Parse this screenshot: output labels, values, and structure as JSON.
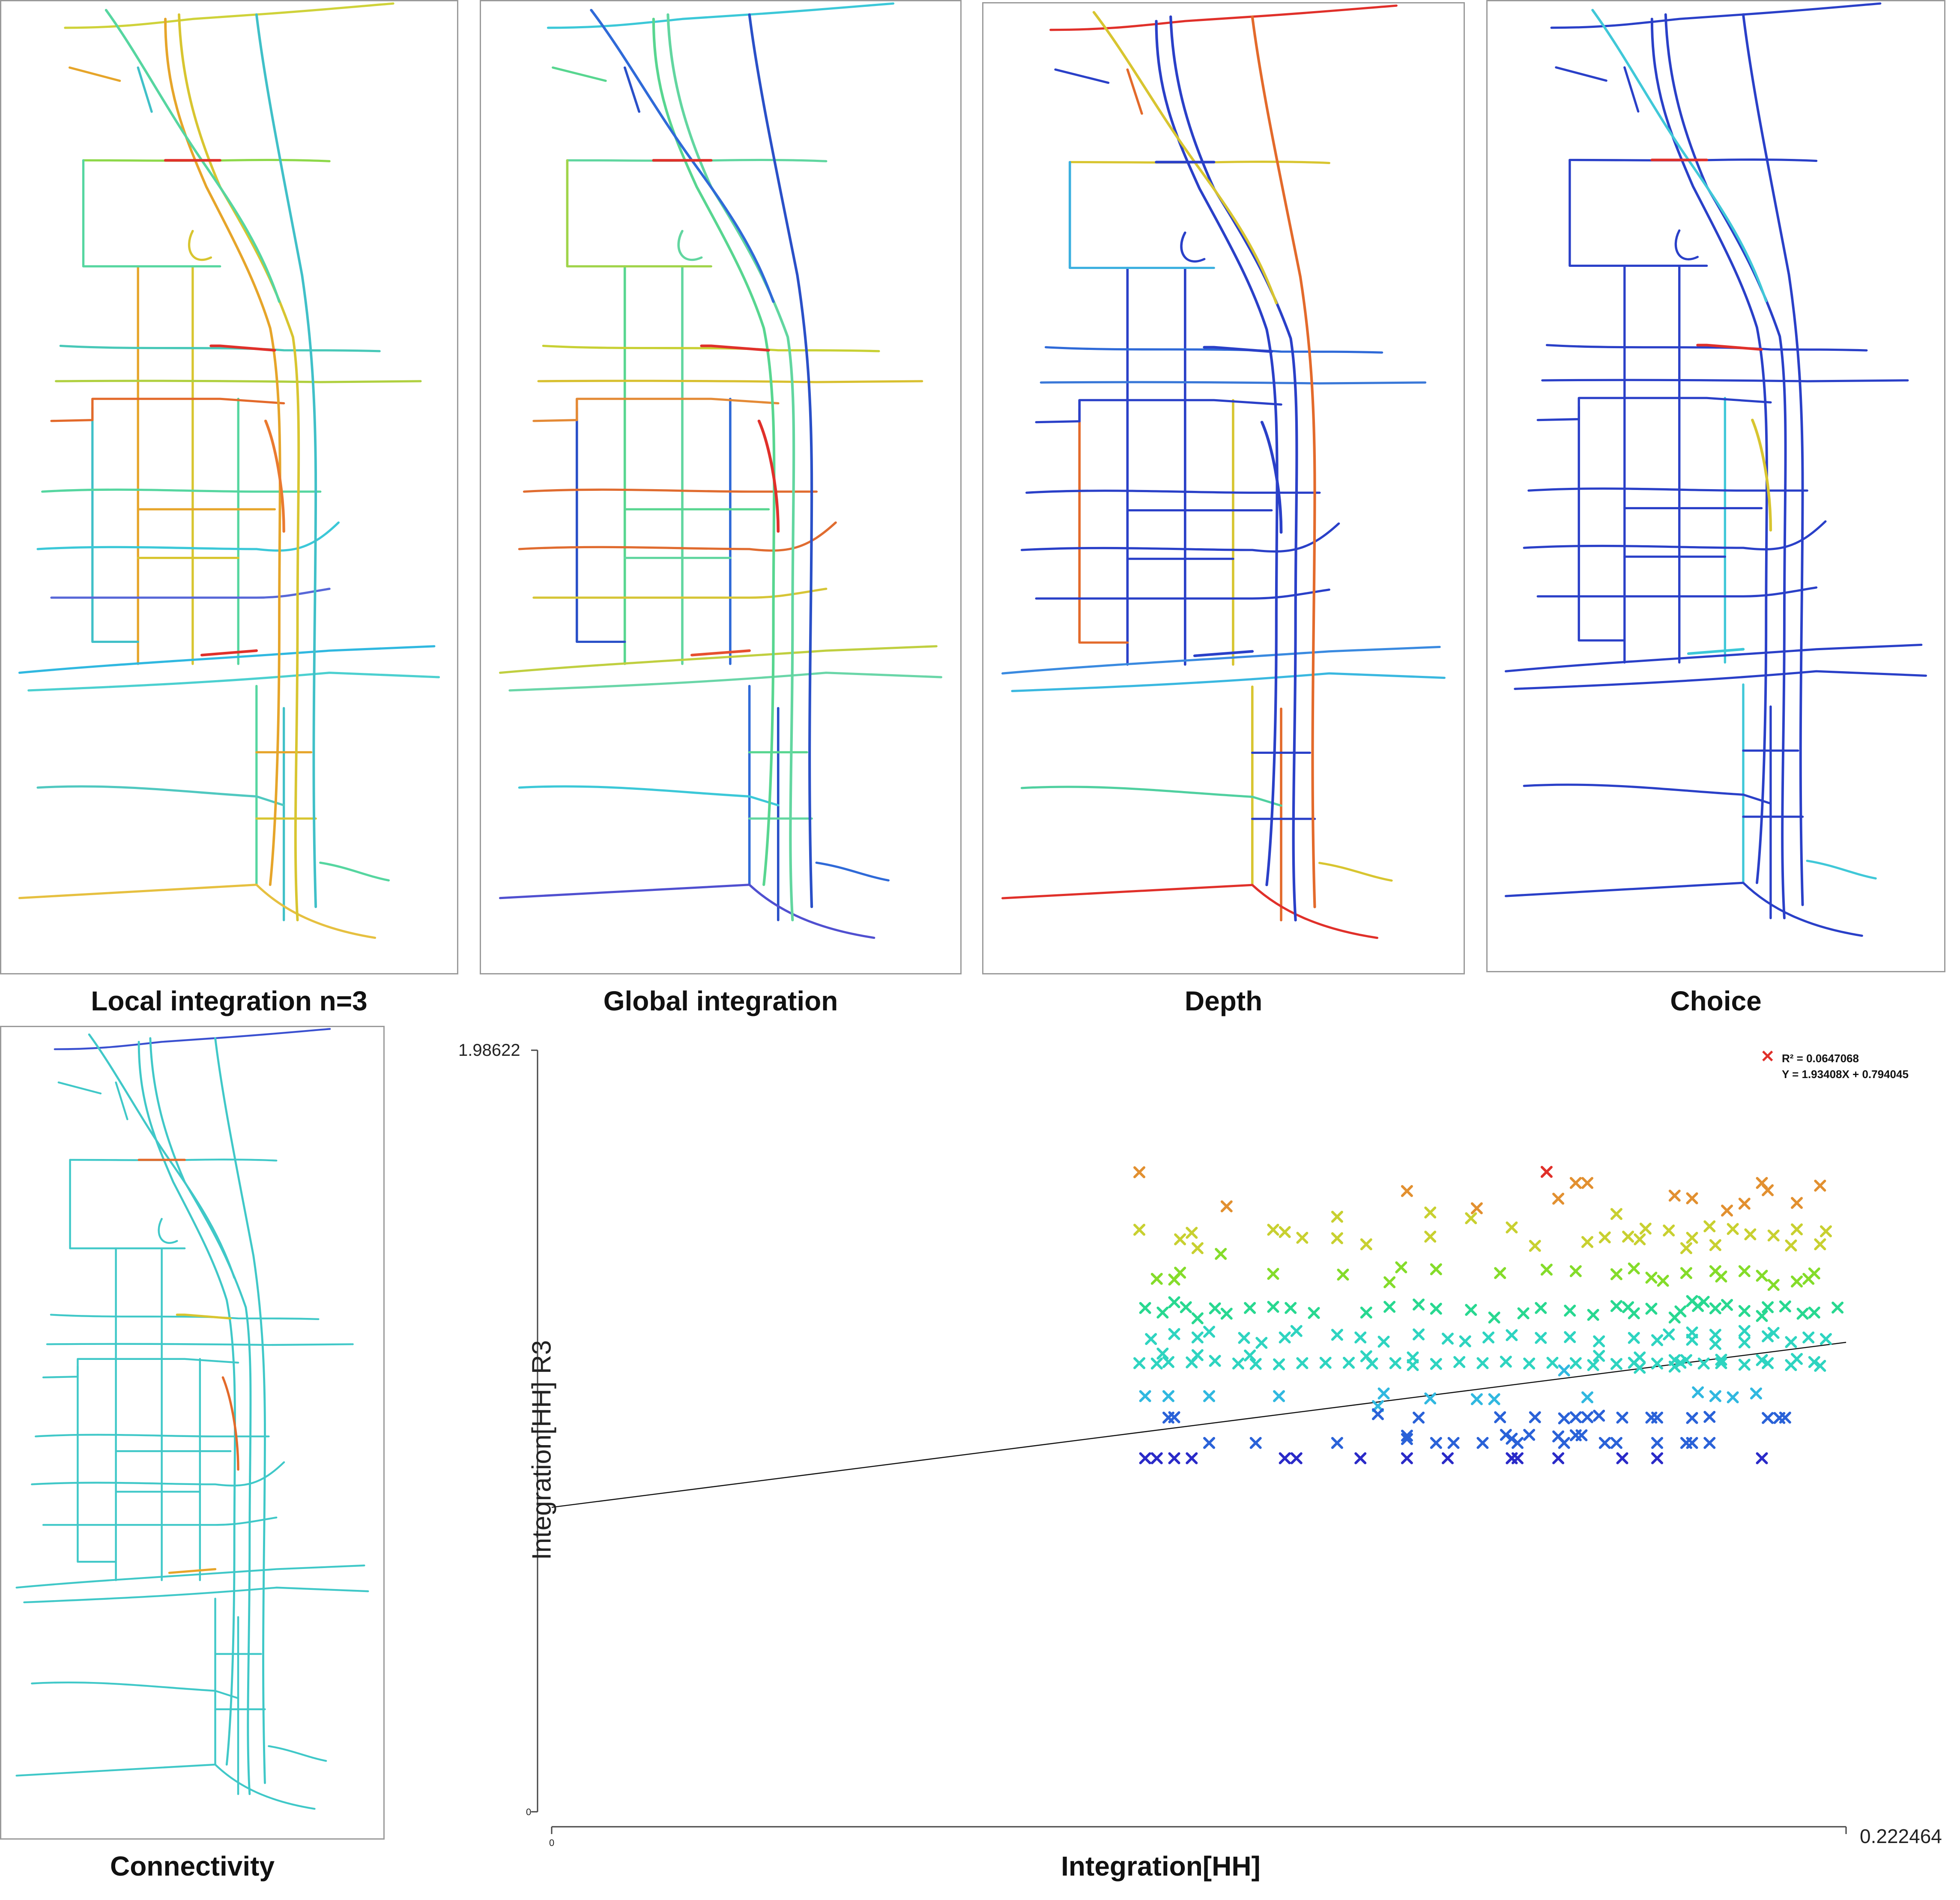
{
  "captions": {
    "local": "Local integration n=3",
    "global": "Global integration",
    "depth": "Depth",
    "choice": "Choice",
    "connectivity": "Connectivity"
  },
  "maps": {
    "local": {
      "axes": [
        "#e6a52a",
        "#d8c530",
        "#56d6a0",
        "#40c0c8"
      ],
      "cross": [
        "#cfd23a",
        "#8ed84a",
        "#56d6a0",
        "#48c8b8",
        "#b0d040",
        "#e36a2b",
        "#56d6a0",
        "#3cc8d8",
        "#5868d8",
        "#30b8e0",
        "#4cd0d0",
        "#50c8c0",
        "#e6c040"
      ],
      "hot_links": [
        "#e0302a",
        "#e0302a",
        "#ea7a30",
        "#e0302a"
      ]
    },
    "global": {
      "axes": [
        "#58d690",
        "#62d6a0",
        "#2f6ad8",
        "#2a50c8"
      ],
      "cross": [
        "#3cc8d8",
        "#60d6a0",
        "#a0d44a",
        "#c8d034",
        "#d8c030",
        "#e48a36",
        "#e06c30",
        "#e06c30",
        "#d6c536",
        "#c0cf40",
        "#6ad6a8",
        "#3cc8d8",
        "#5050d0"
      ],
      "hot_links": [
        "#e0302a",
        "#e0302a",
        "#e0302a",
        "#e65030"
      ]
    },
    "depth": {
      "axes": [
        "#2a40c8",
        "#2a40c8",
        "#d8c530",
        "#e36a2b"
      ],
      "cross": [
        "#e0302a",
        "#d8c530",
        "#3cb0e0",
        "#2f6ad8",
        "#3a78d8",
        "#2a40c8",
        "#2a40c8",
        "#2a40c8",
        "#2a40c8",
        "#3a8ae0",
        "#3ab8e0",
        "#50d0a0",
        "#e0302a"
      ],
      "hot_links": [
        "#2a40c8",
        "#2a40c8",
        "#2a40c8",
        "#2a40c8"
      ]
    },
    "choice": {
      "axes": [
        "#2a40c8",
        "#2a40c8",
        "#40c8d8",
        "#2a40c8"
      ],
      "cross": [
        "#2a40c8",
        "#2a40c8",
        "#2a40c8",
        "#2a40c8",
        "#2a40c8",
        "#2a40c8",
        "#2a40c8",
        "#2a40c8",
        "#2a40c8",
        "#2a40c8",
        "#2a40c8",
        "#2a40c8",
        "#2a40c8"
      ],
      "hot_links": [
        "#e0302a",
        "#e0302a",
        "#d8c530",
        "#3cc8d8"
      ]
    },
    "connectivity": {
      "axes": [
        "#40c8c8",
        "#40c8c8",
        "#40c8c8",
        "#40c8c8"
      ],
      "cross": [
        "#3a50d0",
        "#40c8c8",
        "#40c8c8",
        "#40c8c8",
        "#40c8c8",
        "#40c8c8",
        "#40c8c8",
        "#40c8c8",
        "#40c8c8",
        "#40c8c8",
        "#40c8c8",
        "#40c8c8",
        "#40c8c8"
      ],
      "hot_links": [
        "#e36a2b",
        "#d8c530",
        "#e36a2b",
        "#e6a52a"
      ]
    }
  },
  "chart_data": {
    "type": "scatter",
    "xlabel": "Integration[HH]",
    "ylabel": "Integration[HH] R3",
    "xlim": [
      0,
      0.222464
    ],
    "ylim": [
      0,
      1.98622
    ],
    "x_tick_labels": [
      "0",
      "0.222464"
    ],
    "y_tick_labels": [
      "0",
      "1.98622"
    ],
    "annotation": {
      "r2": "R² = 0.0647068",
      "equation": "Y = 1.93408X + 0.794045"
    },
    "regression": {
      "slope": 1.93408,
      "intercept": 0.794045
    },
    "marker": "x",
    "colormap": [
      "#2a2ac8",
      "#2a62d8",
      "#30b8e0",
      "#2ed4c0",
      "#28d890",
      "#84dc2a",
      "#c8d030",
      "#e29030",
      "#e0302a"
    ],
    "points": [
      [
        0.101,
        1.668
      ],
      [
        0.116,
        1.579
      ],
      [
        0.171,
        1.669
      ],
      [
        0.176,
        1.64
      ],
      [
        0.173,
        1.599
      ],
      [
        0.147,
        1.619
      ],
      [
        0.135,
        1.552
      ],
      [
        0.151,
        1.563
      ],
      [
        0.158,
        1.548
      ],
      [
        0.159,
        1.574
      ],
      [
        0.183,
        1.559
      ],
      [
        0.205,
        1.586
      ],
      [
        0.209,
        1.621
      ],
      [
        0.208,
        1.64
      ],
      [
        0.218,
        1.633
      ],
      [
        0.214,
        1.588
      ],
      [
        0.178,
        1.64
      ],
      [
        0.193,
        1.607
      ],
      [
        0.196,
        1.6
      ],
      [
        0.202,
        1.568
      ],
      [
        0.101,
        1.518
      ],
      [
        0.11,
        1.51
      ],
      [
        0.108,
        1.493
      ],
      [
        0.111,
        1.47
      ],
      [
        0.115,
        1.455
      ],
      [
        0.124,
        1.518
      ],
      [
        0.126,
        1.512
      ],
      [
        0.129,
        1.497
      ],
      [
        0.135,
        1.496
      ],
      [
        0.14,
        1.48
      ],
      [
        0.151,
        1.5
      ],
      [
        0.165,
        1.524
      ],
      [
        0.169,
        1.476
      ],
      [
        0.178,
        1.486
      ],
      [
        0.185,
        1.5
      ],
      [
        0.187,
        1.493
      ],
      [
        0.192,
        1.516
      ],
      [
        0.196,
        1.497
      ],
      [
        0.199,
        1.527
      ],
      [
        0.203,
        1.52
      ],
      [
        0.21,
        1.503
      ],
      [
        0.214,
        1.519
      ],
      [
        0.219,
        1.514
      ],
      [
        0.181,
        1.498
      ],
      [
        0.188,
        1.521
      ],
      [
        0.206,
        1.506
      ],
      [
        0.213,
        1.477
      ],
      [
        0.2,
        1.478
      ],
      [
        0.195,
        1.47
      ],
      [
        0.218,
        1.48
      ],
      [
        0.104,
        1.39
      ],
      [
        0.107,
        1.388
      ],
      [
        0.108,
        1.406
      ],
      [
        0.124,
        1.403
      ],
      [
        0.136,
        1.401
      ],
      [
        0.144,
        1.381
      ],
      [
        0.146,
        1.42
      ],
      [
        0.152,
        1.415
      ],
      [
        0.163,
        1.405
      ],
      [
        0.171,
        1.414
      ],
      [
        0.176,
        1.41
      ],
      [
        0.183,
        1.402
      ],
      [
        0.189,
        1.393
      ],
      [
        0.195,
        1.405
      ],
      [
        0.201,
        1.396
      ],
      [
        0.208,
        1.398
      ],
      [
        0.214,
        1.383
      ],
      [
        0.217,
        1.404
      ],
      [
        0.21,
        1.374
      ],
      [
        0.205,
        1.41
      ],
      [
        0.191,
        1.385
      ],
      [
        0.186,
        1.417
      ],
      [
        0.2,
        1.41
      ],
      [
        0.216,
        1.39
      ],
      [
        0.102,
        1.314
      ],
      [
        0.105,
        1.302
      ],
      [
        0.107,
        1.329
      ],
      [
        0.109,
        1.316
      ],
      [
        0.111,
        1.287
      ],
      [
        0.114,
        1.313
      ],
      [
        0.116,
        1.299
      ],
      [
        0.12,
        1.314
      ],
      [
        0.124,
        1.317
      ],
      [
        0.127,
        1.314
      ],
      [
        0.131,
        1.301
      ],
      [
        0.14,
        1.302
      ],
      [
        0.144,
        1.317
      ],
      [
        0.149,
        1.323
      ],
      [
        0.152,
        1.312
      ],
      [
        0.158,
        1.309
      ],
      [
        0.162,
        1.289
      ],
      [
        0.167,
        1.3
      ],
      [
        0.17,
        1.314
      ],
      [
        0.175,
        1.307
      ],
      [
        0.179,
        1.296
      ],
      [
        0.183,
        1.319
      ],
      [
        0.186,
        1.3
      ],
      [
        0.189,
        1.312
      ],
      [
        0.193,
        1.289
      ],
      [
        0.197,
        1.319
      ],
      [
        0.2,
        1.313
      ],
      [
        0.205,
        1.306
      ],
      [
        0.209,
        1.316
      ],
      [
        0.212,
        1.318
      ],
      [
        0.217,
        1.302
      ],
      [
        0.221,
        1.315
      ],
      [
        0.215,
        1.299
      ],
      [
        0.208,
        1.293
      ],
      [
        0.194,
        1.305
      ],
      [
        0.185,
        1.316
      ],
      [
        0.196,
        1.332
      ],
      [
        0.202,
        1.322
      ],
      [
        0.198,
        1.33
      ],
      [
        0.103,
        1.233
      ],
      [
        0.107,
        1.246
      ],
      [
        0.111,
        1.237
      ],
      [
        0.113,
        1.252
      ],
      [
        0.119,
        1.236
      ],
      [
        0.122,
        1.223
      ],
      [
        0.126,
        1.237
      ],
      [
        0.128,
        1.254
      ],
      [
        0.135,
        1.244
      ],
      [
        0.139,
        1.237
      ],
      [
        0.143,
        1.226
      ],
      [
        0.149,
        1.245
      ],
      [
        0.154,
        1.234
      ],
      [
        0.157,
        1.227
      ],
      [
        0.161,
        1.237
      ],
      [
        0.165,
        1.243
      ],
      [
        0.17,
        1.236
      ],
      [
        0.175,
        1.238
      ],
      [
        0.18,
        1.227
      ],
      [
        0.186,
        1.236
      ],
      [
        0.19,
        1.23
      ],
      [
        0.196,
        1.231
      ],
      [
        0.2,
        1.244
      ],
      [
        0.205,
        1.224
      ],
      [
        0.209,
        1.24
      ],
      [
        0.213,
        1.225
      ],
      [
        0.216,
        1.237
      ],
      [
        0.219,
        1.233
      ],
      [
        0.205,
        1.254
      ],
      [
        0.196,
        1.25
      ],
      [
        0.21,
        1.249
      ],
      [
        0.2,
        1.22
      ],
      [
        0.192,
        1.245
      ],
      [
        0.101,
        1.17
      ],
      [
        0.104,
        1.169
      ],
      [
        0.106,
        1.173
      ],
      [
        0.11,
        1.172
      ],
      [
        0.114,
        1.176
      ],
      [
        0.118,
        1.169
      ],
      [
        0.121,
        1.168
      ],
      [
        0.125,
        1.167
      ],
      [
        0.129,
        1.17
      ],
      [
        0.133,
        1.171
      ],
      [
        0.137,
        1.171
      ],
      [
        0.141,
        1.169
      ],
      [
        0.145,
        1.17
      ],
      [
        0.148,
        1.165
      ],
      [
        0.152,
        1.168
      ],
      [
        0.156,
        1.173
      ],
      [
        0.16,
        1.17
      ],
      [
        0.164,
        1.174
      ],
      [
        0.168,
        1.169
      ],
      [
        0.172,
        1.171
      ],
      [
        0.176,
        1.17
      ],
      [
        0.179,
        1.165
      ],
      [
        0.183,
        1.168
      ],
      [
        0.186,
        1.171
      ],
      [
        0.19,
        1.169
      ],
      [
        0.194,
        1.171
      ],
      [
        0.198,
        1.169
      ],
      [
        0.201,
        1.17
      ],
      [
        0.205,
        1.166
      ],
      [
        0.209,
        1.17
      ],
      [
        0.213,
        1.165
      ],
      [
        0.217,
        1.173
      ],
      [
        0.218,
        1.163
      ],
      [
        0.193,
        1.178
      ],
      [
        0.187,
        1.185
      ],
      [
        0.18,
        1.189
      ],
      [
        0.148,
        1.185
      ],
      [
        0.14,
        1.188
      ],
      [
        0.12,
        1.19
      ],
      [
        0.111,
        1.191
      ],
      [
        0.105,
        1.195
      ],
      [
        0.195,
        1.178
      ],
      [
        0.201,
        1.179
      ],
      [
        0.208,
        1.178
      ],
      [
        0.214,
        1.181
      ],
      [
        0.193,
        1.161
      ],
      [
        0.187,
        1.158
      ],
      [
        0.174,
        1.151
      ],
      [
        0.102,
        1.084
      ],
      [
        0.106,
        1.084
      ],
      [
        0.113,
        1.084
      ],
      [
        0.125,
        1.084
      ],
      [
        0.143,
        1.091
      ],
      [
        0.151,
        1.078
      ],
      [
        0.142,
        1.058
      ],
      [
        0.178,
        1.081
      ],
      [
        0.197,
        1.094
      ],
      [
        0.2,
        1.084
      ],
      [
        0.203,
        1.081
      ],
      [
        0.207,
        1.091
      ],
      [
        0.159,
        1.076
      ],
      [
        0.162,
        1.076
      ],
      [
        0.106,
        1.028
      ],
      [
        0.107,
        1.029
      ],
      [
        0.142,
        1.037
      ],
      [
        0.149,
        1.028
      ],
      [
        0.163,
        1.029
      ],
      [
        0.169,
        1.029
      ],
      [
        0.174,
        1.026
      ],
      [
        0.184,
        1.028
      ],
      [
        0.189,
        1.028
      ],
      [
        0.19,
        1.028
      ],
      [
        0.196,
        1.027
      ],
      [
        0.209,
        1.027
      ],
      [
        0.212,
        1.028
      ],
      [
        0.211,
        1.027
      ],
      [
        0.176,
        1.029
      ],
      [
        0.178,
        1.029
      ],
      [
        0.18,
        1.033
      ],
      [
        0.199,
        1.03
      ],
      [
        0.147,
        0.972
      ],
      [
        0.165,
        0.973
      ],
      [
        0.173,
        0.979
      ],
      [
        0.164,
        0.983
      ],
      [
        0.168,
        0.983
      ],
      [
        0.176,
        0.982
      ],
      [
        0.177,
        0.982
      ],
      [
        0.147,
        0.981
      ],
      [
        0.113,
        0.962
      ],
      [
        0.121,
        0.962
      ],
      [
        0.135,
        0.962
      ],
      [
        0.152,
        0.962
      ],
      [
        0.155,
        0.962
      ],
      [
        0.16,
        0.962
      ],
      [
        0.166,
        0.962
      ],
      [
        0.174,
        0.962
      ],
      [
        0.183,
        0.962
      ],
      [
        0.19,
        0.962
      ],
      [
        0.196,
        0.962
      ],
      [
        0.199,
        0.962
      ],
      [
        0.195,
        0.962
      ],
      [
        0.181,
        0.962
      ],
      [
        0.102,
        0.922
      ],
      [
        0.104,
        0.922
      ],
      [
        0.107,
        0.922
      ],
      [
        0.11,
        0.922
      ],
      [
        0.126,
        0.922
      ],
      [
        0.128,
        0.922
      ],
      [
        0.139,
        0.922
      ],
      [
        0.147,
        0.922
      ],
      [
        0.154,
        0.922
      ],
      [
        0.165,
        0.922
      ],
      [
        0.165,
        0.922
      ],
      [
        0.166,
        0.922
      ],
      [
        0.173,
        0.922
      ],
      [
        0.184,
        0.922
      ],
      [
        0.19,
        0.922
      ],
      [
        0.208,
        0.922
      ]
    ]
  }
}
